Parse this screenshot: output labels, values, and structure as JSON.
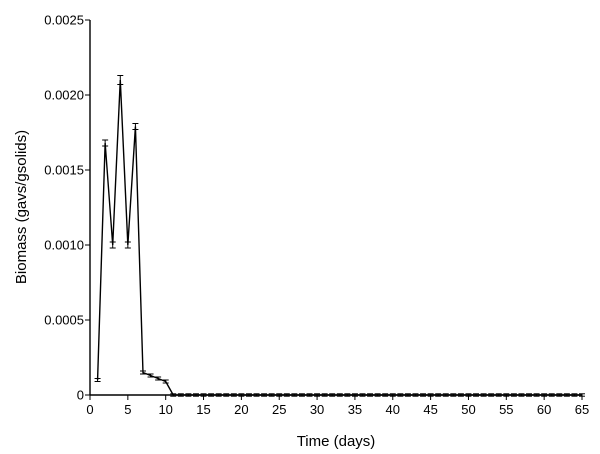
{
  "chart_data": {
    "type": "line",
    "title": "",
    "xlabel": "Time (days)",
    "ylabel": "Biomass  (gavs/gsolids)",
    "xlim": [
      0,
      65
    ],
    "ylim": [
      0,
      0.0025
    ],
    "x_ticks": [
      0,
      5,
      10,
      15,
      20,
      25,
      30,
      35,
      40,
      45,
      50,
      55,
      60,
      65
    ],
    "y_ticks": [
      0,
      0.0005,
      0.001,
      0.0015,
      0.002,
      0.0025
    ],
    "y_tick_labels": [
      "0",
      "0.0005",
      "0.0010",
      "0.0015",
      "0.0020",
      "0.0025"
    ],
    "grid": false,
    "legend": "none",
    "series": [
      {
        "x": [
          1,
          2,
          3,
          4,
          5,
          6,
          7,
          8,
          9,
          10,
          11,
          12,
          13,
          14,
          15,
          16,
          17,
          18,
          19,
          20,
          21,
          22,
          23,
          24,
          25,
          26,
          27,
          28,
          29,
          30,
          31,
          32,
          33,
          34,
          35,
          36,
          37,
          38,
          39,
          40,
          41,
          42,
          43,
          44,
          45,
          46,
          47,
          48,
          49,
          50,
          51,
          52,
          53,
          54,
          55,
          56,
          57,
          58,
          59,
          60,
          61,
          62,
          63,
          64,
          65
        ],
        "values": [
          0.0001,
          0.00168,
          0.001,
          0.0021,
          0.001,
          0.00179,
          0.00015,
          0.00013,
          0.00011,
          9e-05,
          0,
          0,
          0,
          0,
          0,
          0,
          0,
          0,
          0,
          0,
          0,
          0,
          0,
          0,
          0,
          0,
          0,
          0,
          0,
          0,
          0,
          0,
          0,
          0,
          0,
          0,
          0,
          0,
          0,
          0,
          0,
          0,
          0,
          0,
          0,
          0,
          0,
          0,
          0,
          0,
          0,
          0,
          0,
          0,
          0,
          0,
          0,
          0,
          0,
          0,
          0,
          0,
          0,
          0,
          0
        ],
        "error": [
          1e-05,
          2e-05,
          2e-05,
          3e-05,
          2e-05,
          2e-05,
          1e-05,
          1e-05,
          1e-05,
          1e-05,
          0,
          0,
          0,
          0,
          0,
          0,
          0,
          0,
          0,
          0,
          0,
          0,
          0,
          0,
          0,
          0,
          0,
          0,
          0,
          0,
          0,
          0,
          0,
          0,
          0,
          0,
          0,
          0,
          0,
          0,
          0,
          0,
          0,
          0,
          0,
          0,
          0,
          0,
          0,
          0,
          0,
          0,
          0,
          0,
          0,
          0,
          0,
          0,
          0,
          0,
          0,
          0,
          0,
          0,
          0
        ],
        "color": "#000000"
      }
    ]
  }
}
